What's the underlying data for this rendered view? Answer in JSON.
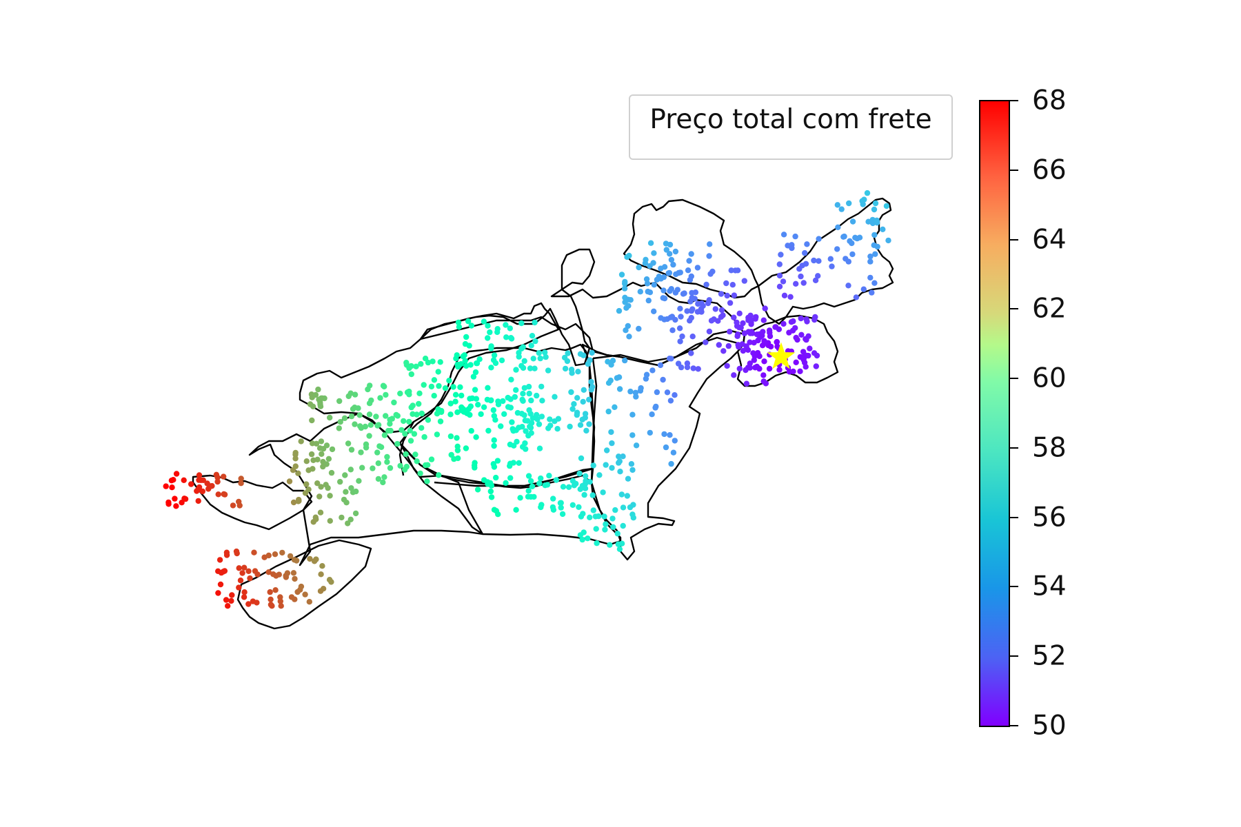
{
  "legend": {
    "title": "Preço total com frete"
  },
  "colorbar": {
    "min": 50,
    "max": 68,
    "ticks": [
      "68",
      "66",
      "64",
      "62",
      "60",
      "58",
      "56",
      "54",
      "52",
      "50"
    ],
    "colormap": "rainbow"
  },
  "marker": {
    "shape": "star",
    "color": "#ffff00",
    "meaning": "origin point"
  },
  "colors": {
    "outline": "#000000",
    "legend_border": "#d0d0d0"
  }
}
